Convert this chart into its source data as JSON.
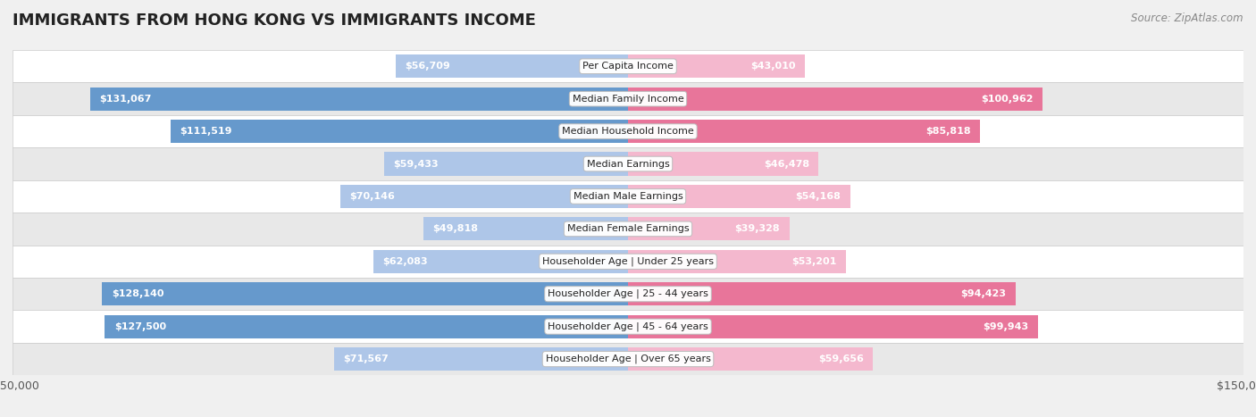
{
  "title": "IMMIGRANTS FROM HONG KONG VS IMMIGRANTS INCOME",
  "source": "Source: ZipAtlas.com",
  "categories": [
    "Per Capita Income",
    "Median Family Income",
    "Median Household Income",
    "Median Earnings",
    "Median Male Earnings",
    "Median Female Earnings",
    "Householder Age | Under 25 years",
    "Householder Age | 25 - 44 years",
    "Householder Age | 45 - 64 years",
    "Householder Age | Over 65 years"
  ],
  "hk_values": [
    56709,
    131067,
    111519,
    59433,
    70146,
    49818,
    62083,
    128140,
    127500,
    71567
  ],
  "imm_values": [
    43010,
    100962,
    85818,
    46478,
    54168,
    39328,
    53201,
    94423,
    99943,
    59656
  ],
  "hk_labels": [
    "$56,709",
    "$131,067",
    "$111,519",
    "$59,433",
    "$70,146",
    "$49,818",
    "$62,083",
    "$128,140",
    "$127,500",
    "$71,567"
  ],
  "imm_labels": [
    "$43,010",
    "$100,962",
    "$85,818",
    "$46,478",
    "$54,168",
    "$39,328",
    "$53,201",
    "$94,423",
    "$99,943",
    "$59,656"
  ],
  "hk_color_strong": "#6699cc",
  "hk_color_light": "#aec6e8",
  "imm_color_strong": "#e8759a",
  "imm_color_light": "#f4b8ce",
  "max_value": 150000,
  "bg_color": "#f0f0f0",
  "row_bg_even": "#ffffff",
  "row_bg_odd": "#e8e8e8",
  "label_color_inside": "#ffffff",
  "label_color_outside": "#555555",
  "title_fontsize": 13,
  "source_fontsize": 8.5,
  "bar_label_fontsize": 8,
  "cat_label_fontsize": 8,
  "axis_label_fontsize": 9,
  "legend_fontsize": 9,
  "bar_height": 0.72,
  "inside_threshold": 30000
}
